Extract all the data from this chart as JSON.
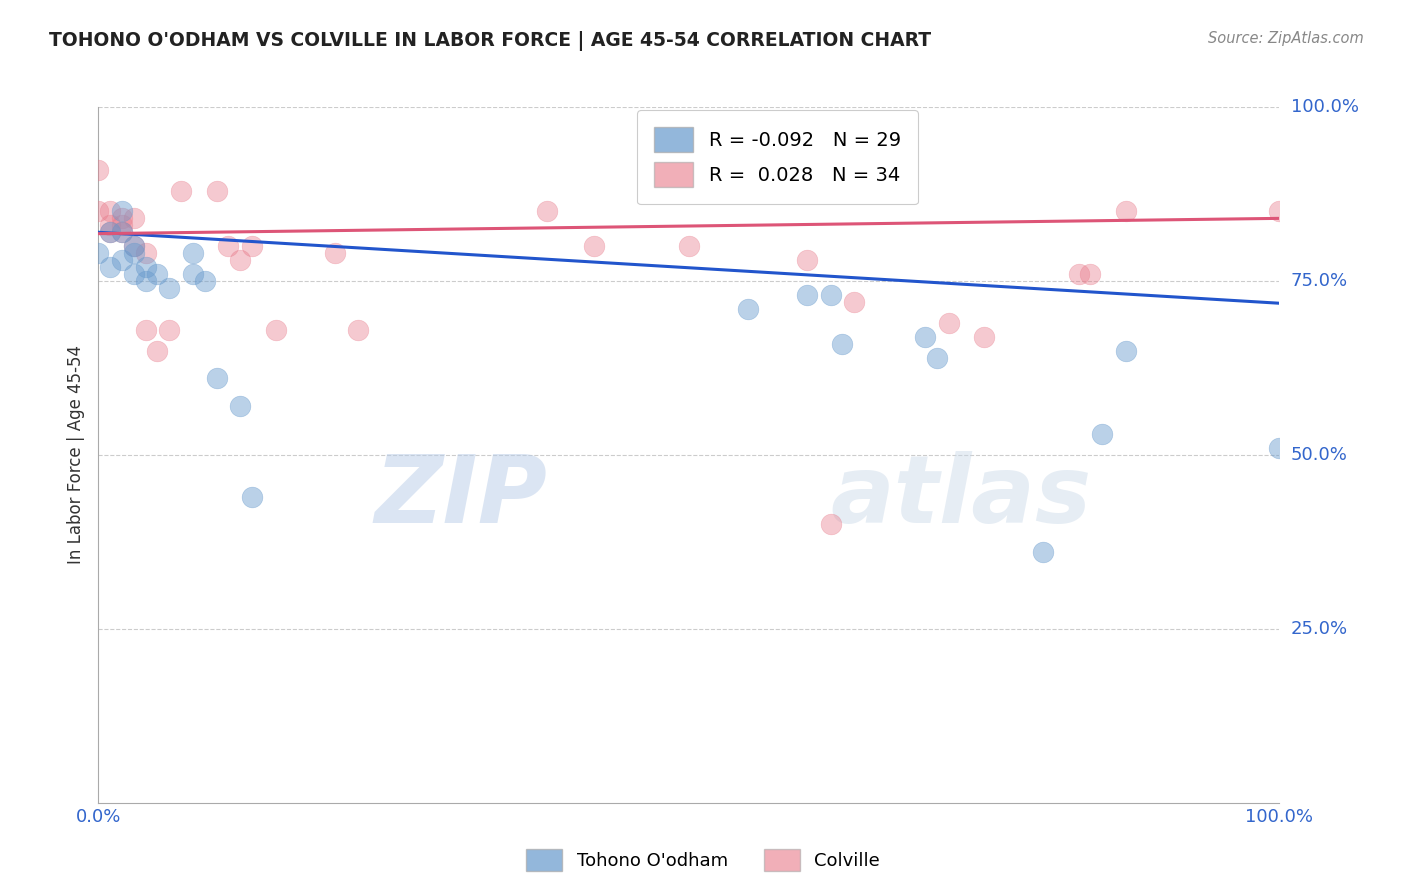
{
  "title": "TOHONO O'ODHAM VS COLVILLE IN LABOR FORCE | AGE 45-54 CORRELATION CHART",
  "source": "Source: ZipAtlas.com",
  "ylabel": "In Labor Force | Age 45-54",
  "xlim": [
    0.0,
    1.0
  ],
  "ylim": [
    0.0,
    1.0
  ],
  "x_tick_labels": [
    "0.0%",
    "100.0%"
  ],
  "x_tick_positions": [
    0.0,
    1.0
  ],
  "y_tick_labels": [
    "100.0%",
    "75.0%",
    "50.0%",
    "25.0%"
  ],
  "y_tick_positions": [
    1.0,
    0.75,
    0.5,
    0.25
  ],
  "watermark_zip": "ZIP",
  "watermark_atlas": "atlas",
  "blue_R": -0.092,
  "blue_N": 29,
  "pink_R": 0.028,
  "pink_N": 34,
  "blue_label": "Tohono O'odham",
  "pink_label": "Colville",
  "blue_color": "#6699cc",
  "pink_color": "#e87a8a",
  "blue_line_color": "#2255cc",
  "pink_line_color": "#dd5577",
  "blue_points_x": [
    0.0,
    0.01,
    0.01,
    0.02,
    0.02,
    0.02,
    0.03,
    0.03,
    0.03,
    0.04,
    0.04,
    0.05,
    0.06,
    0.08,
    0.08,
    0.09,
    0.1,
    0.12,
    0.13,
    0.55,
    0.6,
    0.62,
    0.63,
    0.7,
    0.71,
    0.8,
    0.85,
    0.87,
    1.0
  ],
  "blue_points_y": [
    0.79,
    0.82,
    0.77,
    0.85,
    0.82,
    0.78,
    0.8,
    0.79,
    0.76,
    0.77,
    0.75,
    0.76,
    0.74,
    0.79,
    0.76,
    0.75,
    0.61,
    0.57,
    0.44,
    0.71,
    0.73,
    0.73,
    0.66,
    0.67,
    0.64,
    0.36,
    0.53,
    0.65,
    0.51
  ],
  "pink_points_x": [
    0.0,
    0.0,
    0.01,
    0.01,
    0.01,
    0.02,
    0.02,
    0.02,
    0.03,
    0.03,
    0.04,
    0.04,
    0.05,
    0.06,
    0.07,
    0.1,
    0.11,
    0.12,
    0.13,
    0.15,
    0.2,
    0.22,
    0.38,
    0.42,
    0.5,
    0.6,
    0.62,
    0.64,
    0.72,
    0.75,
    0.83,
    0.84,
    0.87,
    1.0
  ],
  "pink_points_y": [
    0.85,
    0.91,
    0.85,
    0.82,
    0.83,
    0.84,
    0.82,
    0.83,
    0.8,
    0.84,
    0.79,
    0.68,
    0.65,
    0.68,
    0.88,
    0.88,
    0.8,
    0.78,
    0.8,
    0.68,
    0.79,
    0.68,
    0.85,
    0.8,
    0.8,
    0.78,
    0.4,
    0.72,
    0.69,
    0.67,
    0.76,
    0.76,
    0.85,
    0.85
  ],
  "background_color": "#ffffff",
  "grid_color": "#cccccc"
}
